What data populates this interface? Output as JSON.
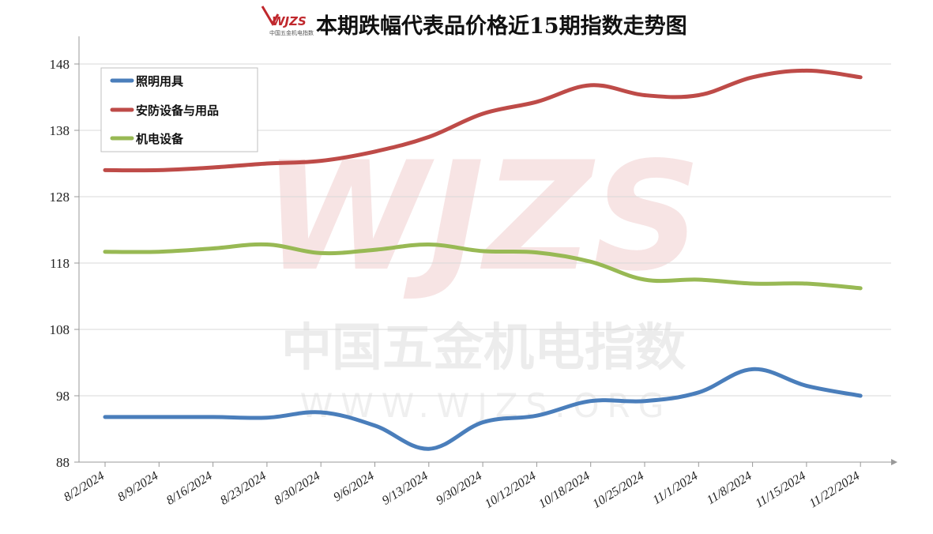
{
  "header": {
    "logo_text": "WJZS",
    "logo_subtext": "中国五金机电指数",
    "title": "本期跌幅代表品价格近15期指数走势图"
  },
  "watermark": {
    "logo": "WJZS",
    "cn": "中国五金机电指数",
    "en": "WWW.WJZS.ORG"
  },
  "colors": {
    "series": [
      "#4a7ebb",
      "#be4b48",
      "#98b954"
    ],
    "grid": "#d9d9d9",
    "axis": "#999999"
  },
  "chart_data": {
    "type": "line",
    "title": "本期跌幅代表品价格近15期指数走势图",
    "categories": [
      "8/2/2024",
      "8/9/2024",
      "8/16/2024",
      "8/23/2024",
      "8/30/2024",
      "9/6/2024",
      "9/13/2024",
      "9/30/2024",
      "10/12/2024",
      "10/18/2024",
      "10/25/2024",
      "11/1/2024",
      "11/8/2024",
      "11/15/2024",
      "11/22/2024"
    ],
    "yticks": [
      "88",
      "98",
      "108",
      "118",
      "128",
      "138",
      "148"
    ],
    "ylim": [
      88,
      152
    ],
    "grid": true,
    "smooth": true,
    "legend_position": "top-left",
    "series": [
      {
        "name": "照明用具",
        "values": [
          94.8,
          94.8,
          94.8,
          94.7,
          95.5,
          93.5,
          90.0,
          94.0,
          95.0,
          97.2,
          97.2,
          98.5,
          102.0,
          99.5,
          98.0
        ]
      },
      {
        "name": "安防设备与用品",
        "values": [
          132.0,
          132.0,
          132.4,
          133.0,
          133.4,
          134.8,
          137.0,
          140.5,
          142.3,
          144.8,
          143.3,
          143.3,
          146.0,
          147.0,
          146.0
        ]
      },
      {
        "name": "机电设备",
        "values": [
          119.7,
          119.7,
          120.2,
          120.8,
          119.5,
          120.0,
          120.8,
          119.8,
          119.6,
          118.2,
          115.5,
          115.5,
          114.9,
          114.9,
          114.2
        ]
      }
    ]
  }
}
